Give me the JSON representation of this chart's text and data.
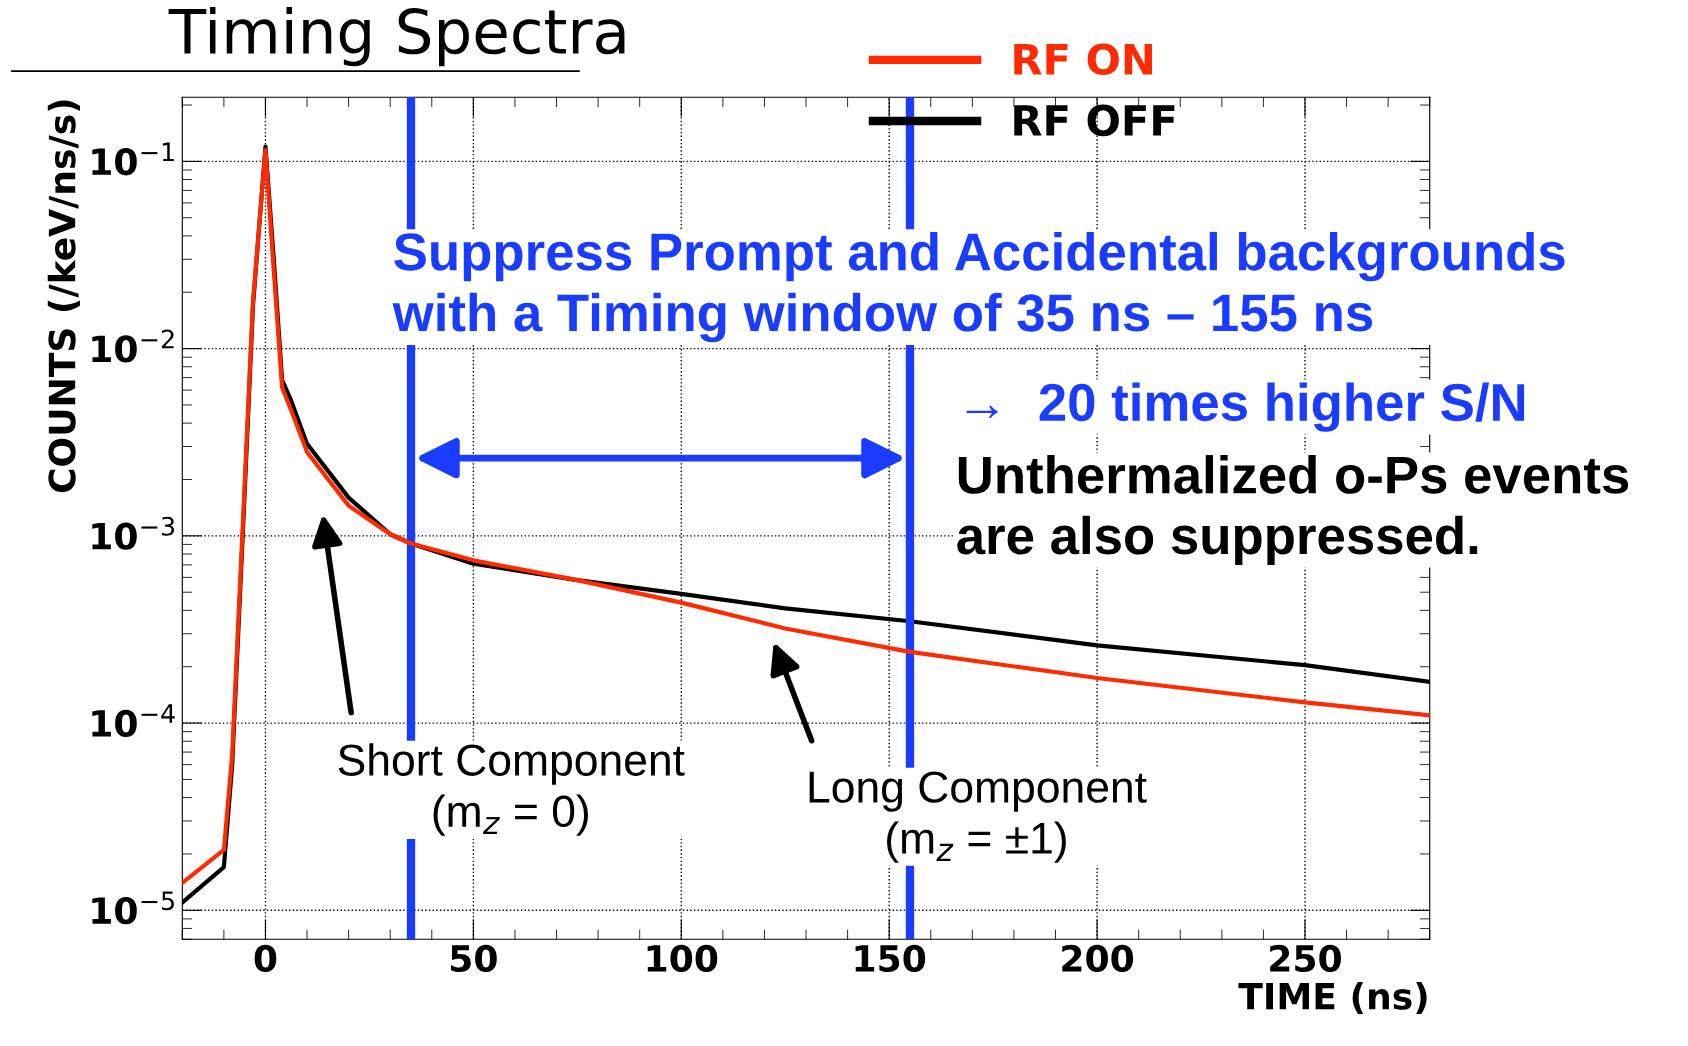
{
  "chart_data": {
    "type": "line",
    "title": "Timing Spectra",
    "xlabel": "TIME (ns)",
    "ylabel": "COUNTS (/keV/ns/s)",
    "x": [
      -20,
      -10,
      -8,
      -5,
      -3,
      0,
      2,
      4,
      6,
      10,
      20,
      30,
      35,
      50,
      75,
      100,
      125,
      155,
      200,
      250,
      280
    ],
    "series": [
      {
        "name": "RF ON",
        "color": "#ff2a00",
        "values": [
          1.4e-05,
          2.1e-05,
          6.8e-05,
          0.0019,
          0.018,
          0.115,
          0.026,
          0.0062,
          0.0048,
          0.0028,
          0.00145,
          0.00102,
          0.00091,
          0.00074,
          0.00058,
          0.00044,
          0.00032,
          0.00024,
          0.000174,
          0.000129,
          0.00011
        ]
      },
      {
        "name": "RF OFF",
        "color": "#000000",
        "values": [
          1.1e-05,
          1.7e-05,
          6e-05,
          0.0017,
          0.017,
          0.12,
          0.03,
          0.0068,
          0.0054,
          0.0031,
          0.0016,
          0.00102,
          0.00091,
          0.00071,
          0.00058,
          0.00049,
          0.00041,
          0.00035,
          0.00026,
          0.000204,
          0.000166
        ]
      }
    ],
    "xlim": [
      -20,
      280
    ],
    "xticks": [
      0,
      50,
      100,
      150,
      200,
      250
    ],
    "ylim": [
      7e-06,
      0.22
    ],
    "yticks": [
      {
        "value": 1e-05,
        "label": "10$^{−5}$"
      },
      {
        "value": 0.0001,
        "label": "10$^{−4}$"
      },
      {
        "value": 0.001,
        "label": "10$^{−3}$"
      },
      {
        "value": 0.01,
        "label": "10$^{−2}$"
      },
      {
        "value": 0.1,
        "label": "10$^{−1}$"
      }
    ],
    "log": "y",
    "grid": true,
    "legend": "top right",
    "line_style": "solid",
    "ref_lines": [
      {
        "axis": "x",
        "value": 35,
        "color": "#1a3cff"
      },
      {
        "axis": "x",
        "value": 155,
        "color": "#1a3cff"
      }
    ],
    "annotations": [
      "Suppress Prompt and Accidental backgrounds\nwith a Timing window of 35 ns – 155 ns",
      "→  20 times higher S/N",
      "Unthermalized o-Ps events\nare also suppressed.",
      "Short Component\n(m$_{z}$ = 0)",
      "Long Component\n(m$_{z}$ = ±1)"
    ]
  }
}
